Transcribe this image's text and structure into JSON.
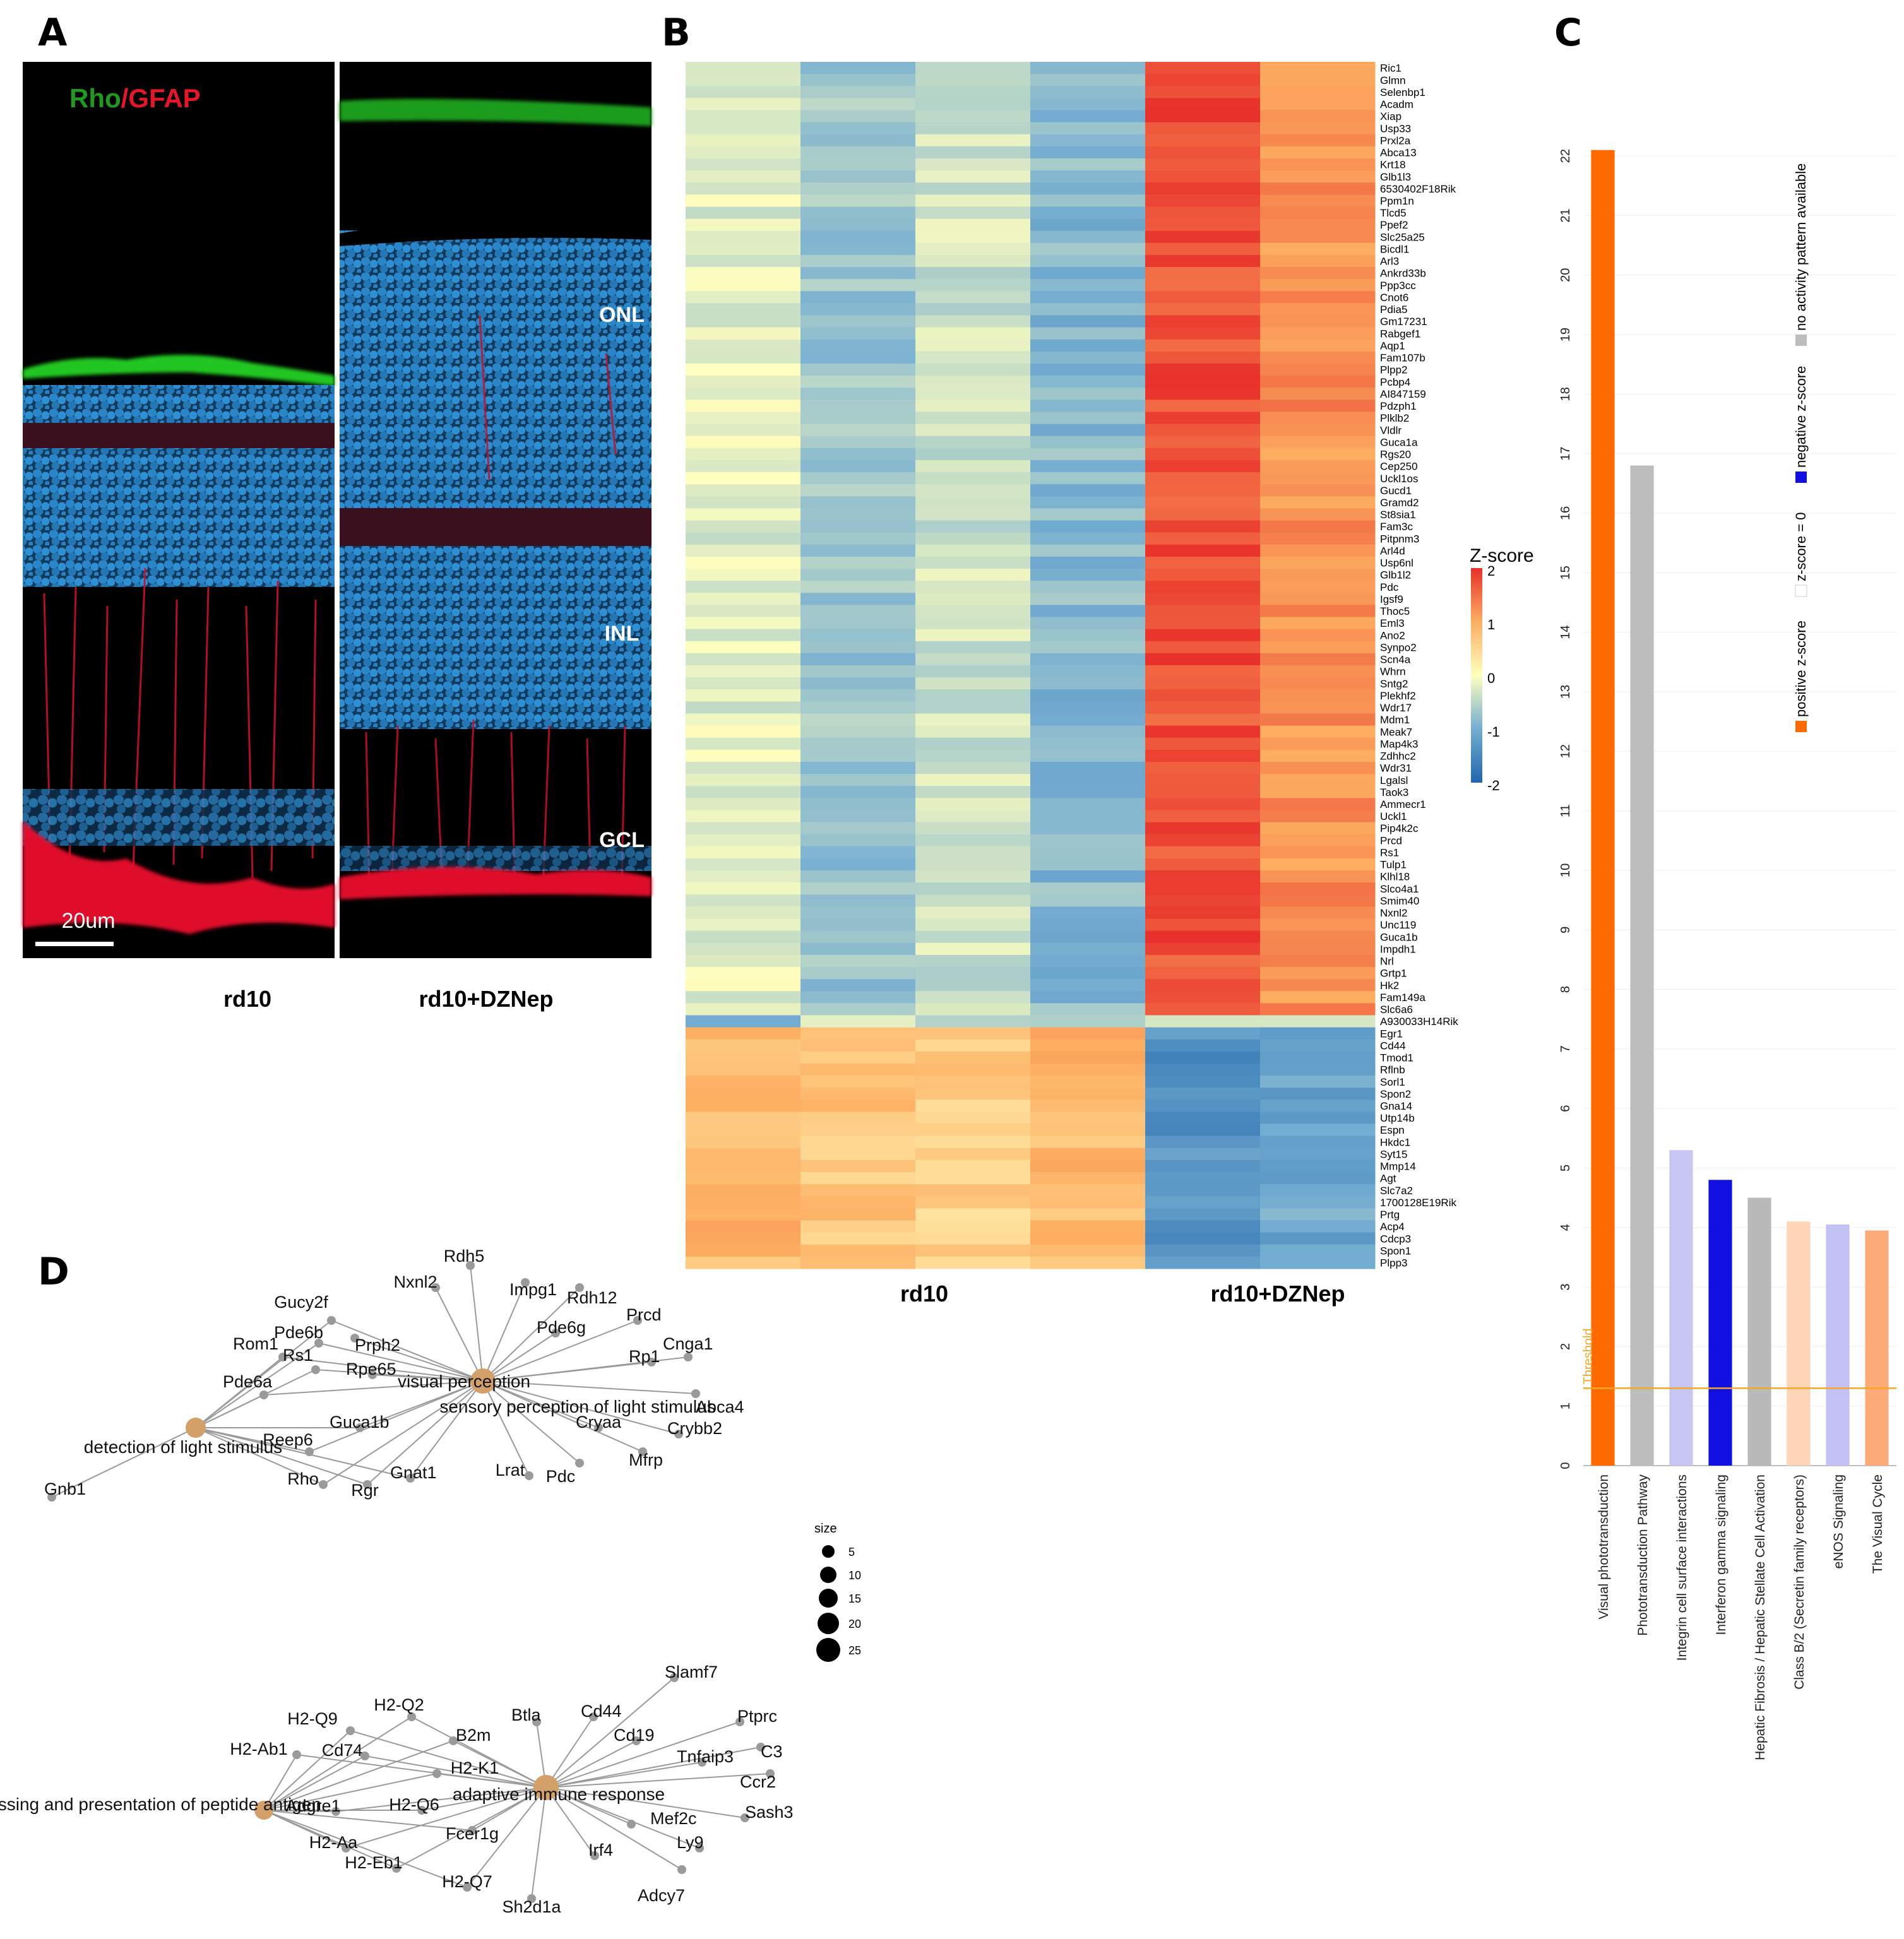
{
  "panels": {
    "a": "A",
    "b": "B",
    "c": "C",
    "d": "D"
  },
  "panel_a": {
    "stain_rho": "Rho",
    "stain_sep": "/",
    "stain_gfap": "GFAP",
    "layer_labels": [
      "ONL",
      "INL",
      "GCL"
    ],
    "scale_bar": "20um",
    "conditions": [
      "rd10",
      "rd10+DZNep"
    ],
    "colors": {
      "rho": "#1f9a1f",
      "gfap": "#e8152a",
      "nuclei": "#2a86c8"
    }
  },
  "panel_b": {
    "groups": [
      "rd10",
      "rd10+DZNep"
    ],
    "colorbar_title": "Z-score",
    "colorbar_ticks": [
      "2",
      "1",
      "0",
      "-1",
      "-2"
    ],
    "genes_up": [
      "Ric1",
      "Glmn",
      "Selenbp1",
      "Acadm",
      "Xiap",
      "Usp33",
      "Prxl2a",
      "Abca13",
      "Krt18",
      "Glb1l3",
      "6530402F18Rik",
      "Ppm1n",
      "Tlcd5",
      "Ppef2",
      "Slc25a25",
      "Bicdl1",
      "Arl3",
      "Ankrd33b",
      "Ppp3cc",
      "Cnot6",
      "Pdia5",
      "Gm17231",
      "Rabgef1",
      "Aqp1",
      "Fam107b",
      "Plpp2",
      "Pcbp4",
      "AI847159",
      "Pdzph1",
      "Plklb2",
      "Vldlr",
      "Guca1a",
      "Rgs20",
      "Cep250",
      "Uckl1os",
      "Gucd1",
      "Gramd2",
      "St8sia1",
      "Fam3c",
      "Pitpnm3",
      "Arl4d",
      "Usp6nl",
      "Glb1l2",
      "Pdc",
      "Igsf9",
      "Thoc5",
      "Eml3",
      "Ano2",
      "Synpo2",
      "Scn4a",
      "Whrn",
      "Sntg2",
      "Plekhf2",
      "Wdr17",
      "Mdm1",
      "Meak7",
      "Map4k3",
      "Zdhhc2",
      "Wdr31",
      "Lgalsl",
      "Taok3",
      "Ammecr1",
      "Uckl1",
      "Pip4k2c",
      "Prcd",
      "Rs1",
      "Tulp1",
      "Klhl18",
      "Slco4a1",
      "Smim40",
      "Nxnl2",
      "Unc119",
      "Guca1b",
      "Impdh1",
      "Nrl",
      "Grtp1",
      "Hk2",
      "Fam149a",
      "Slc6a6"
    ],
    "genes_mid": [
      "A930033H14Rik"
    ],
    "genes_down": [
      "Egr1",
      "Cd44",
      "Tmod1",
      "Rflnb",
      "Sorl1",
      "Spon2",
      "Gna14",
      "Utp14b",
      "Espn",
      "Hkdc1",
      "Syt15",
      "Mmp14",
      "Agt",
      "Slc7a2",
      "1700128E19Rik",
      "Prtg",
      "Acp4",
      "Cdcp3",
      "Spon1",
      "Plpp3"
    ]
  },
  "panel_c": {
    "chart_data": {
      "type": "bar",
      "categories": [
        "Visual phototransduction",
        "Phototransduction Pathway",
        "Integrin cell surface interactions",
        "Interferon gamma signaling",
        "Hepatic Fibrosis / Hepatic Stellate Cell Activation",
        "Class B/2 (Secretin family receptors)",
        "eNOS Signaling",
        "The Visual Cycle"
      ],
      "values": [
        22.1,
        16.8,
        5.3,
        4.8,
        4.5,
        4.1,
        4.05,
        3.95
      ],
      "colors": [
        "#ff6a00",
        "#bdbdbd",
        "#c7c6f2",
        "#1010e0",
        "#b9b9b9",
        "#ffd5b8",
        "#c3c1f3",
        "#fbaa78"
      ],
      "threshold": 1.3,
      "threshold_label": "Threshold",
      "ylim": [
        0,
        22.5
      ],
      "yticks": [
        "0",
        "1",
        "2",
        "3",
        "4",
        "5",
        "6",
        "7",
        "8",
        "9",
        "10",
        "11",
        "12",
        "13",
        "14",
        "15",
        "16",
        "17",
        "18",
        "19",
        "20",
        "21",
        "22"
      ],
      "legend": [
        "positive z-score",
        "z-score = 0",
        "negative z-score",
        "no activity pattern available"
      ],
      "legend_colors": [
        "#ff6a00",
        "#ffffff",
        "#1010e0",
        "#bdbdbd"
      ]
    }
  },
  "panel_d": {
    "size_title": "size",
    "size_values": [
      "5",
      "10",
      "15",
      "20",
      "25"
    ],
    "network1": {
      "hubs": [
        "visual perception",
        "sensory perception of light stimulus",
        "detection of light stimulus"
      ],
      "genes": [
        "Rdh5",
        "Nxnl2",
        "Impg1",
        "Rdh12",
        "Gucy2f",
        "Pde6b",
        "Prph2",
        "Prcd",
        "Pde6g",
        "Rom1",
        "Rp1",
        "Cnga1",
        "Rs1",
        "Rpe65",
        "Abca4",
        "Pde6a",
        "Guca1b",
        "Cryaa",
        "Crybb2",
        "Reep6",
        "Mfrp",
        "Rho",
        "Rgr",
        "Gnat1",
        "Lrat",
        "Pdc",
        "Gnb1"
      ]
    },
    "network2": {
      "hubs": [
        "adaptive immune response",
        "antigen processing and presentation of peptide antigen"
      ],
      "genes": [
        "Slamf7",
        "H2-Q2",
        "Btla",
        "Cd44",
        "Ptprc",
        "H2-Q9",
        "B2m",
        "Cd19",
        "C3",
        "H2-Ab1",
        "Cd74",
        "Tnfaip3",
        "H2-K1",
        "Ccr2",
        "Sash3",
        "Adgre1",
        "H2-Q6",
        "Mef2c",
        "Fcer1g",
        "H2-Aa",
        "Ly9",
        "H2-Eb1",
        "Irf4",
        "Adcy7",
        "H2-Q7",
        "Sh2d1a"
      ]
    }
  }
}
